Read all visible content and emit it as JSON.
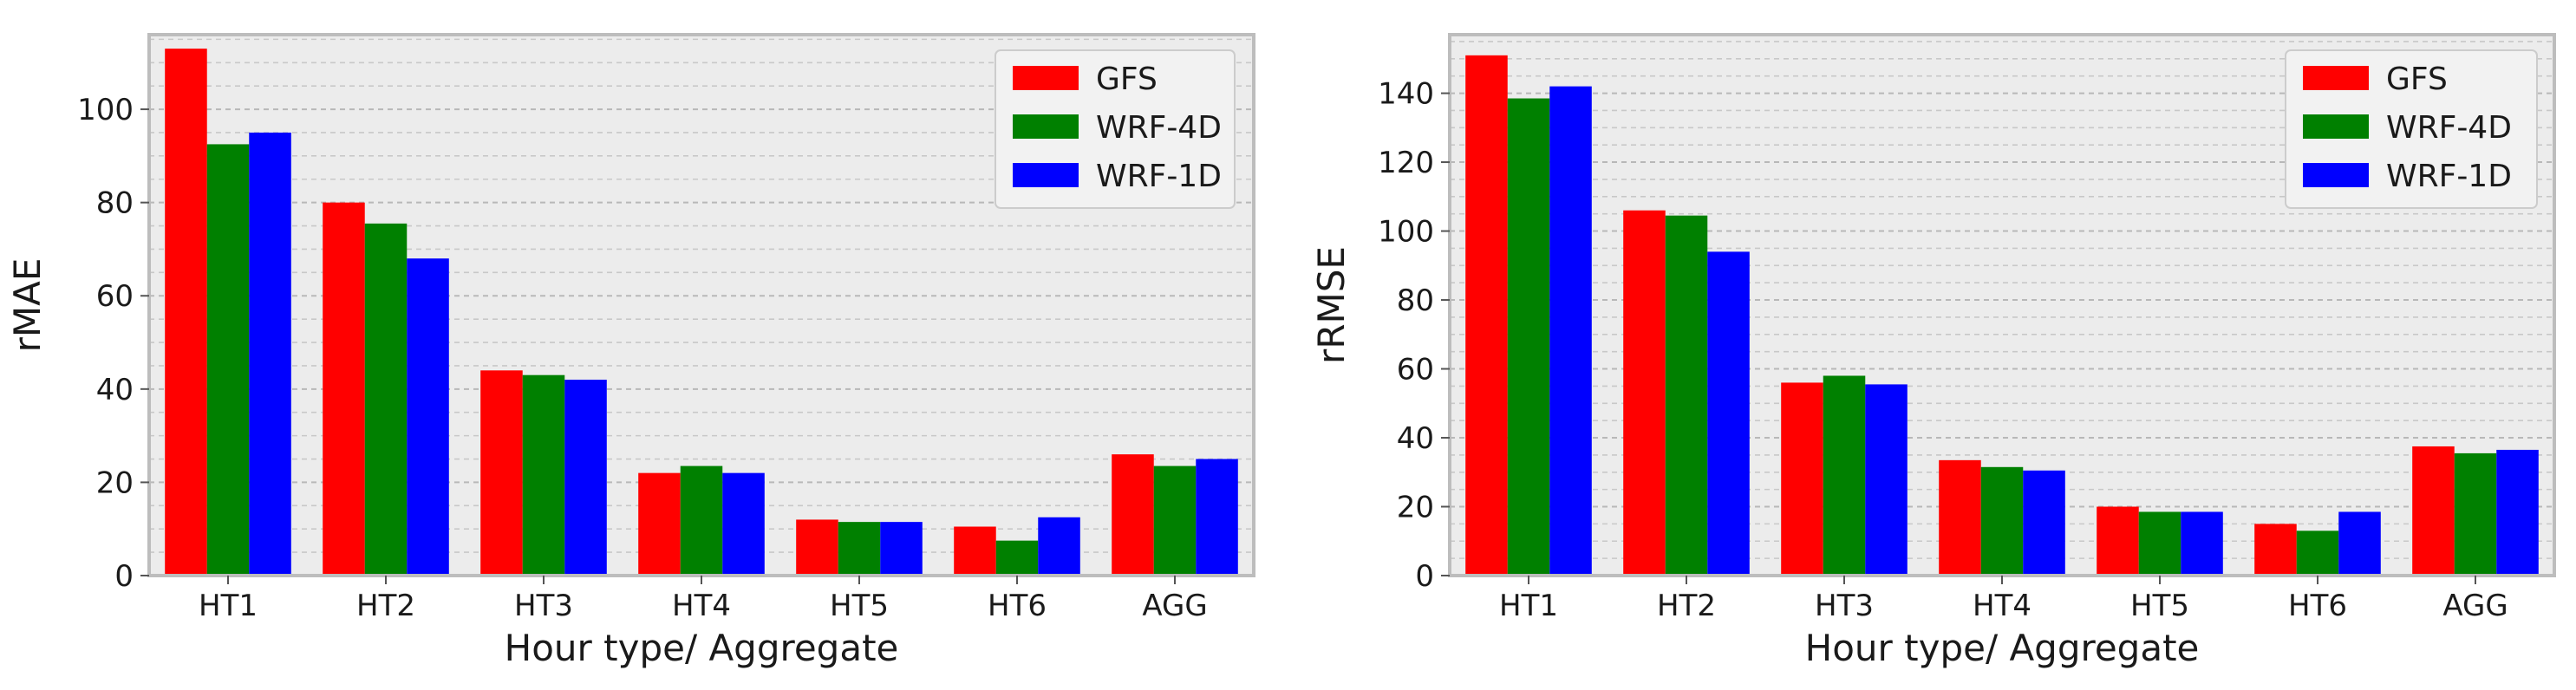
{
  "chart_data": [
    {
      "type": "bar",
      "title": "",
      "xlabel": "Hour type/ Aggregate",
      "ylabel": "rMAE",
      "ylim": [
        0,
        116
      ],
      "yticks": [
        0,
        20,
        40,
        60,
        80,
        100
      ],
      "grid": true,
      "legend_position": "top-right",
      "categories": [
        "HT1",
        "HT2",
        "HT3",
        "HT4",
        "HT5",
        "HT6",
        "AGG"
      ],
      "series": [
        {
          "name": "GFS",
          "color": "#ff0000",
          "values": [
            113,
            80,
            44,
            22,
            12,
            10.5,
            26
          ]
        },
        {
          "name": "WRF-4D",
          "color": "#008000",
          "values": [
            92.5,
            75.5,
            43,
            23.5,
            11.5,
            7.5,
            23.5
          ]
        },
        {
          "name": "WRF-1D",
          "color": "#0000ff",
          "values": [
            95,
            68,
            42,
            22,
            11.5,
            12.5,
            25
          ]
        }
      ]
    },
    {
      "type": "bar",
      "title": "",
      "xlabel": "Hour type/ Aggregate",
      "ylabel": "rRMSE",
      "ylim": [
        0,
        157
      ],
      "yticks": [
        0,
        20,
        40,
        60,
        80,
        100,
        120,
        140
      ],
      "grid": true,
      "legend_position": "top-right",
      "categories": [
        "HT1",
        "HT2",
        "HT3",
        "HT4",
        "HT5",
        "HT6",
        "AGG"
      ],
      "series": [
        {
          "name": "GFS",
          "color": "#ff0000",
          "values": [
            151,
            106,
            56,
            33.5,
            20,
            15,
            37.5
          ]
        },
        {
          "name": "WRF-4D",
          "color": "#008000",
          "values": [
            138.5,
            104.5,
            58,
            31.5,
            18.5,
            13,
            35.5
          ]
        },
        {
          "name": "WRF-1D",
          "color": "#0000ff",
          "values": [
            142,
            94,
            55.5,
            30.5,
            18.5,
            18.5,
            36.5
          ]
        }
      ]
    }
  ]
}
